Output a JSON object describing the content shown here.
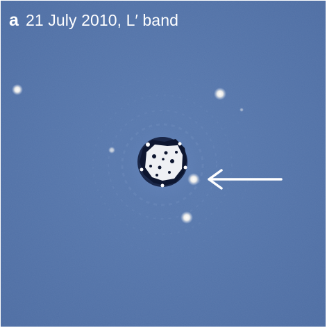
{
  "figure": {
    "panel_letter": "a",
    "caption": "21 July 2010, L′ band",
    "colors": {
      "background": "#5373a8",
      "source": "#ffffff",
      "caption_text": "#ffffff",
      "arrow": "#ffffff",
      "mask_dark": "#0d1630"
    },
    "arrow_icon": "arrow-left-icon",
    "sources_shown": 6
  }
}
